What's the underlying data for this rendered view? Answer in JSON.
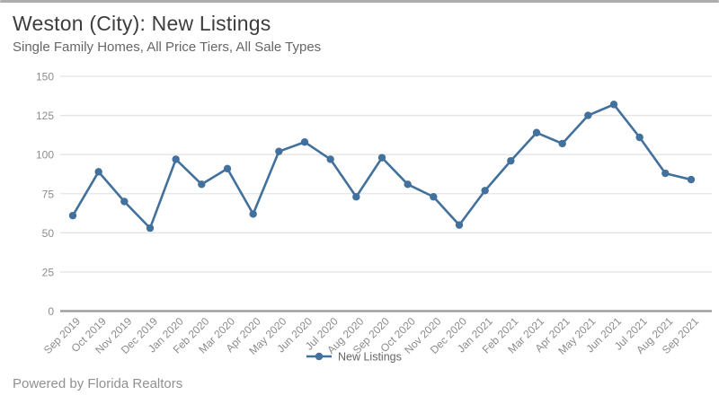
{
  "header": {
    "title": "Weston (City): New Listings",
    "subtitle": "Single Family Homes, All Price Tiers, All Sale Types"
  },
  "footer": {
    "text": "Powered by Florida Realtors"
  },
  "colors": {
    "series_line": "#41719c",
    "gridline": "#e4e4e4",
    "zero_axis": "#a0a0a0",
    "tick_label": "#8c8c8c",
    "legend_text": "#666666",
    "top_border": "#adadad"
  },
  "chart_data": {
    "type": "line",
    "title": "Weston (City): New Listings",
    "subtitle": "Single Family Homes, All Price Tiers, All Sale Types",
    "categories": [
      "Sep 2019",
      "Oct 2019",
      "Nov 2019",
      "Dec 2019",
      "Jan 2020",
      "Feb 2020",
      "Mar 2020",
      "Apr 2020",
      "May 2020",
      "Jun 2020",
      "Jul 2020",
      "Aug 2020",
      "Sep 2020",
      "Oct 2020",
      "Nov 2020",
      "Dec 2020",
      "Jan 2021",
      "Feb 2021",
      "Mar 2021",
      "Apr 2021",
      "May 2021",
      "Jun 2021",
      "Jul 2021",
      "Aug 2021",
      "Sep 2021"
    ],
    "series": [
      {
        "name": "New Listings",
        "values": [
          61,
          89,
          70,
          53,
          97,
          81,
          91,
          62,
          102,
          108,
          97,
          73,
          98,
          81,
          73,
          55,
          77,
          96,
          114,
          107,
          125,
          132,
          111,
          88,
          84
        ]
      }
    ],
    "xlabel": "",
    "ylabel": "",
    "ylim": [
      0,
      150
    ],
    "yticks": [
      0,
      25,
      50,
      75,
      100,
      125,
      150
    ],
    "grid": true,
    "legend_position": "bottom-center"
  }
}
